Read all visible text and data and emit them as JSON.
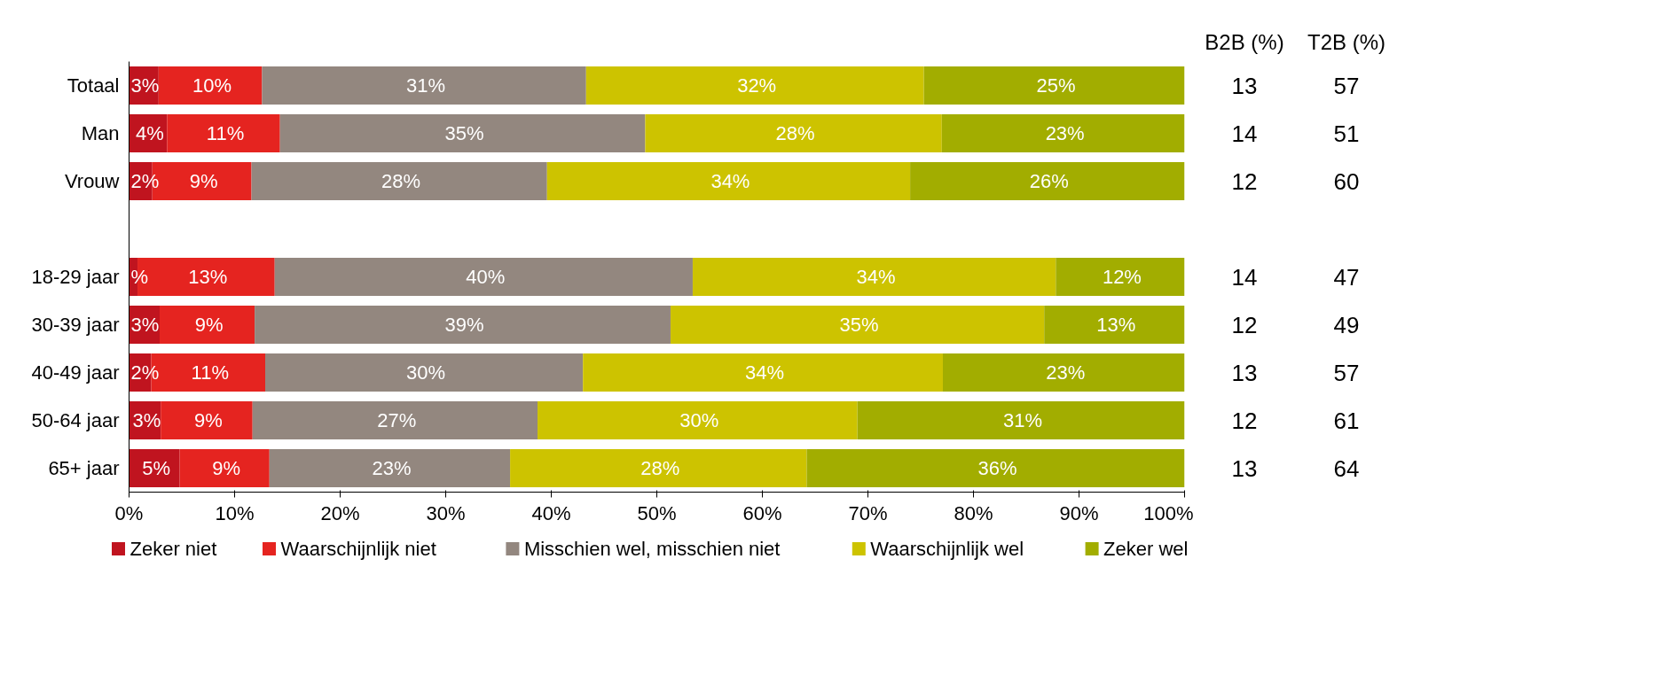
{
  "chart_data": {
    "type": "bar",
    "orientation": "horizontal",
    "stacked": true,
    "categories": [
      "Totaal",
      "Man",
      "Vrouw",
      null,
      "18-29 jaar",
      "30-39 jaar",
      "40-49 jaar",
      "50-64 jaar",
      "65+ jaar"
    ],
    "series": [
      {
        "name": "Zeker niet",
        "color": "#c0141f",
        "values": [
          2.8,
          3.6,
          2.2,
          null,
          0.8,
          2.9,
          2.1,
          3.0,
          4.8
        ],
        "value_labels": [
          "3%",
          "4%",
          "2%",
          null,
          "%",
          "3%",
          "2%",
          "3%",
          "5%"
        ]
      },
      {
        "name": "Waarschijnlijk niet",
        "color": "#e52420",
        "values": [
          9.8,
          10.7,
          9.4,
          null,
          13.0,
          9.0,
          10.8,
          8.7,
          8.5
        ],
        "value_labels": [
          "10%",
          "11%",
          "9%",
          null,
          "13%",
          "9%",
          "11%",
          "9%",
          "9%"
        ]
      },
      {
        "name": "Misschien wel, misschien niet",
        "color": "#93877f",
        "values": [
          30.7,
          34.6,
          28.0,
          null,
          39.6,
          39.4,
          30.1,
          27.0,
          22.8
        ],
        "value_labels": [
          "31%",
          "35%",
          "28%",
          null,
          "40%",
          "39%",
          "30%",
          "27%",
          "23%"
        ]
      },
      {
        "name": "Waarschijnlijk wel",
        "color": "#cdc300",
        "values": [
          32.0,
          28.1,
          34.4,
          null,
          34.4,
          35.4,
          34.1,
          30.3,
          28.1
        ],
        "value_labels": [
          "32%",
          "28%",
          "34%",
          null,
          "34%",
          "35%",
          "34%",
          "30%",
          "28%"
        ]
      },
      {
        "name": "Zeker wel",
        "color": "#a2ad00",
        "values": [
          24.7,
          23.0,
          26.0,
          null,
          12.2,
          13.3,
          22.9,
          31.0,
          35.8
        ],
        "value_labels": [
          "25%",
          "23%",
          "26%",
          null,
          "12%",
          "13%",
          "23%",
          "31%",
          "36%"
        ]
      }
    ],
    "xlim": [
      0,
      100
    ],
    "xticks": [
      {
        "value": 0,
        "label": "0%"
      },
      {
        "value": 10,
        "label": "10%"
      },
      {
        "value": 20,
        "label": "20%"
      },
      {
        "value": 30,
        "label": "30%"
      },
      {
        "value": 40,
        "label": "40%"
      },
      {
        "value": 50,
        "label": "50%"
      },
      {
        "value": 60,
        "label": "60%"
      },
      {
        "value": 70,
        "label": "70%"
      },
      {
        "value": 80,
        "label": "80%"
      },
      {
        "value": 90,
        "label": "90%"
      },
      {
        "value": 100,
        "label": "100%"
      }
    ],
    "annotations": [
      "B2B (%)",
      "T2B (%)",
      "13",
      "57",
      "14",
      "51",
      "12",
      "60",
      "14",
      "47",
      "12",
      "49",
      "13",
      "57",
      "12",
      "61",
      "13",
      "64"
    ],
    "legend": "bottom",
    "grid": false
  }
}
